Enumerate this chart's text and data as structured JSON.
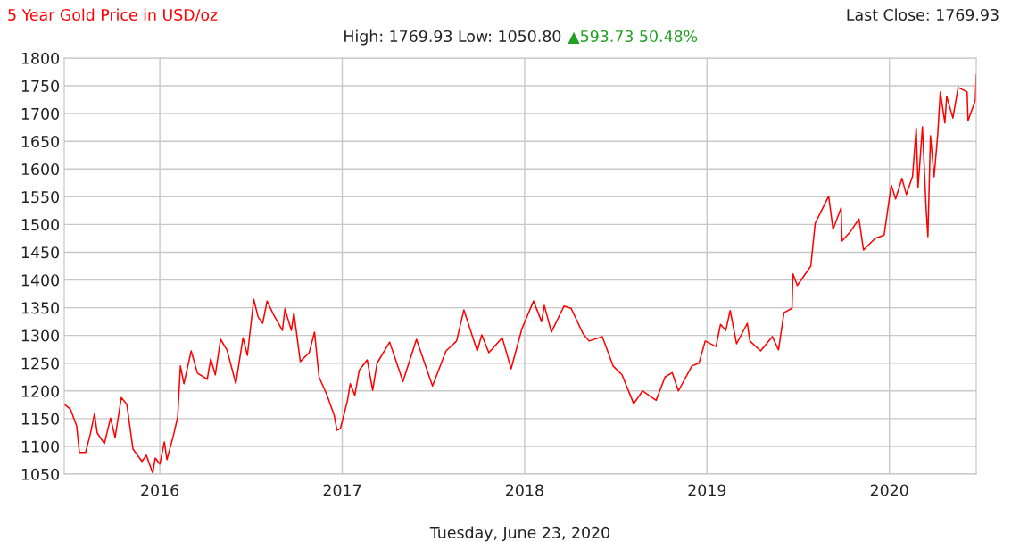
{
  "chart_data": {
    "type": "line",
    "title": "5 Year Gold Price in USD/oz",
    "subtitle": "High: 1769.93 Low: 1050.80",
    "xlabel": "Tuesday, June 23, 2020",
    "annotations": [
      "Last Close: 1769.93",
      "▲593.73 50.48%"
    ],
    "series": [
      {
        "color": "#ff0000",
        "x": [
          2015.476,
          2015.51,
          2015.544,
          2015.559,
          2015.593,
          2015.618,
          2015.642,
          2015.657,
          2015.696,
          2015.73,
          2015.755,
          2015.789,
          2015.819,
          2015.853,
          2015.902,
          2015.926,
          2015.961,
          2015.975,
          2016.0,
          2016.025,
          2016.039,
          2016.074,
          2016.098,
          2016.113,
          2016.132,
          2016.172,
          2016.206,
          2016.26,
          2016.279,
          2016.304,
          2016.333,
          2016.368,
          2016.417,
          2016.456,
          2016.48,
          2016.515,
          2016.539,
          2016.564,
          2016.588,
          2016.623,
          2016.672,
          2016.686,
          2016.721,
          2016.735,
          2016.77,
          2016.819,
          2016.848,
          2016.873,
          2016.917,
          2016.956,
          2016.971,
          2016.99,
          2017.029,
          2017.044,
          2017.069,
          2017.093,
          2017.137,
          2017.167,
          2017.191,
          2017.26,
          2017.333,
          2017.407,
          2017.495,
          2017.569,
          2017.627,
          2017.667,
          2017.74,
          2017.765,
          2017.804,
          2017.877,
          2017.926,
          2017.985,
          2018.049,
          2018.093,
          2018.108,
          2018.147,
          2018.216,
          2018.255,
          2018.319,
          2018.353,
          2018.426,
          2018.485,
          2018.534,
          2018.598,
          2018.647,
          2018.721,
          2018.77,
          2018.809,
          2018.843,
          2018.917,
          2018.956,
          2018.99,
          2019.049,
          2019.074,
          2019.103,
          2019.127,
          2019.162,
          2019.221,
          2019.235,
          2019.294,
          2019.358,
          2019.392,
          2019.422,
          2019.466,
          2019.471,
          2019.495,
          2019.569,
          2019.593,
          2019.667,
          2019.691,
          2019.735,
          2019.74,
          2019.784,
          2019.833,
          2019.858,
          2019.922,
          2019.971,
          2020.01,
          2020.034,
          2020.069,
          2020.093,
          2020.127,
          2020.147,
          2020.157,
          2020.181,
          2020.201,
          2020.211,
          2020.225,
          2020.245,
          2020.265,
          2020.279,
          2020.304,
          2020.314,
          2020.348,
          2020.377,
          2020.426,
          2020.431,
          2020.471,
          2020.476
        ],
        "values": [
          1176,
          1167,
          1137,
          1089,
          1089,
          1121,
          1159,
          1124,
          1105,
          1151,
          1116,
          1188,
          1176,
          1095,
          1073,
          1084,
          1052,
          1079,
          1068,
          1108,
          1076,
          1119,
          1153,
          1245,
          1213,
          1272,
          1232,
          1221,
          1258,
          1229,
          1293,
          1274,
          1213,
          1296,
          1264,
          1365,
          1333,
          1322,
          1362,
          1338,
          1309,
          1348,
          1309,
          1341,
          1253,
          1269,
          1306,
          1225,
          1192,
          1156,
          1129,
          1132,
          1183,
          1213,
          1192,
          1237,
          1256,
          1201,
          1250,
          1288,
          1217,
          1293,
          1209,
          1272,
          1290,
          1346,
          1272,
          1301,
          1269,
          1296,
          1240,
          1312,
          1362,
          1325,
          1354,
          1306,
          1353,
          1349,
          1304,
          1290,
          1298,
          1245,
          1229,
          1177,
          1200,
          1183,
          1225,
          1233,
          1200,
          1245,
          1250,
          1290,
          1280,
          1320,
          1309,
          1345,
          1285,
          1322,
          1290,
          1272,
          1298,
          1274,
          1341,
          1349,
          1411,
          1390,
          1425,
          1502,
          1551,
          1491,
          1530,
          1470,
          1486,
          1510,
          1454,
          1475,
          1481,
          1571,
          1546,
          1583,
          1554,
          1587,
          1674,
          1567,
          1676,
          1530,
          1478,
          1660,
          1586,
          1663,
          1739,
          1683,
          1731,
          1692,
          1747,
          1739,
          1687,
          1724,
          1770
        ]
      }
    ],
    "xlim": [
      2015.476,
      2020.476
    ],
    "xticks": [
      2016,
      2017,
      2018,
      2019,
      2020
    ],
    "ylim": [
      1050,
      1800
    ],
    "yticks": [
      1050,
      1100,
      1150,
      1200,
      1250,
      1300,
      1350,
      1400,
      1450,
      1500,
      1550,
      1600,
      1650,
      1700,
      1750,
      1800
    ],
    "grid": true,
    "marker": "none",
    "line_style": "solid"
  }
}
